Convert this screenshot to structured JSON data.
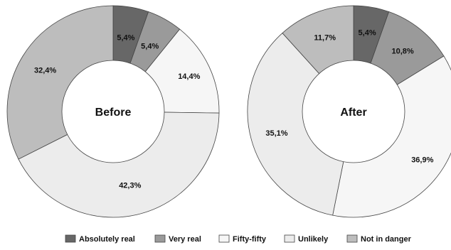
{
  "chart_data": [
    {
      "type": "pie",
      "title": "",
      "center_label": "Before",
      "categories": [
        "Absolutely real",
        "Very real",
        "Fifty-fifty",
        "Unlikely",
        "Not in danger"
      ],
      "values": [
        5.4,
        5.4,
        14.4,
        42.3,
        32.4
      ],
      "labels": [
        "5,4%",
        "5,4%",
        "14,4%",
        "42,3%",
        "32,4%"
      ]
    },
    {
      "type": "pie",
      "title": "",
      "center_label": "After",
      "categories": [
        "Absolutely real",
        "Very real",
        "Fifty-fifty",
        "Unlikely",
        "Not in danger"
      ],
      "values": [
        5.4,
        10.8,
        36.9,
        35.1,
        11.7
      ],
      "labels": [
        "5,4%",
        "10,8%",
        "36,9%",
        "35,1%",
        "11,7%"
      ]
    }
  ],
  "legend": {
    "placement": "bottom",
    "items": [
      {
        "label": "Absolutely real",
        "color": "#676767"
      },
      {
        "label": "Very real",
        "color": "#9a9a9a"
      },
      {
        "label": "Fifty-fifty",
        "color": "#f6f6f6"
      },
      {
        "label": "Unlikely",
        "color": "#ececec"
      },
      {
        "label": "Not in danger",
        "color": "#bdbdbd"
      }
    ]
  },
  "colors": {
    "stroke": "#444444",
    "hole": "#ffffff"
  }
}
